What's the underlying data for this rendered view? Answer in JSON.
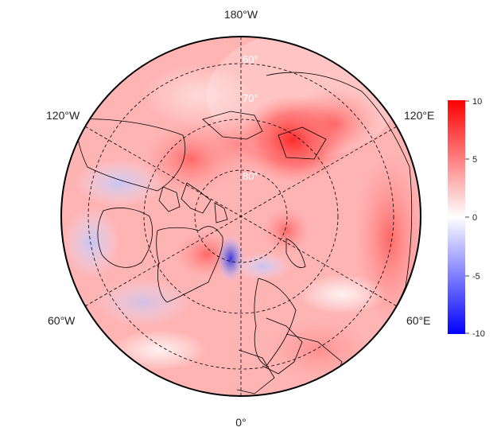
{
  "map": {
    "projection": "north-polar-stereographic",
    "center_lon_bottom": "0°",
    "longitude_labels": {
      "top": "180°W",
      "top_left": "120°W",
      "top_right": "120°E",
      "bottom_left": "60°W",
      "bottom_right": "60°E",
      "bottom": "0°"
    },
    "latitude_labels": [
      "60°",
      "70°",
      "80°"
    ],
    "graticule": {
      "style": "dashed",
      "color": "#000000"
    },
    "coastlines": true,
    "country_borders": true
  },
  "colorbar": {
    "min": -10,
    "max": 10,
    "ticks": [
      "10",
      "5",
      "0",
      "-5",
      "-10"
    ],
    "colors": {
      "low": "#0000ff",
      "mid": "#ffffff",
      "high": "#ff0000"
    }
  },
  "field": {
    "description_colors": {
      "warm_strong": "#ff2a2a",
      "warm": "#ff8080",
      "warm_light": "#ffc8c8",
      "cool": "#c8c8ff",
      "cool_strong": "#4040e0"
    }
  }
}
